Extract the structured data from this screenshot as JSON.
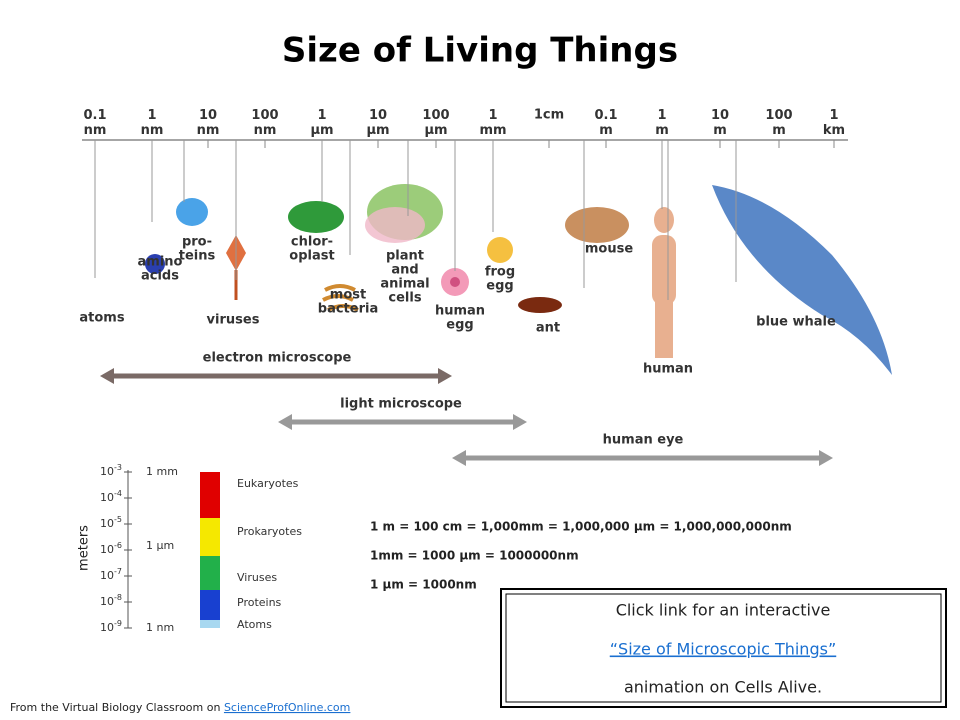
{
  "title": "Size of Living Things",
  "scale": [
    "0.1 nm",
    "1 nm",
    "10 nm",
    "100 nm",
    "1 µm",
    "10 µm",
    "100 µm",
    "1 mm",
    "1cm",
    "0.1 m",
    "1 m",
    "10 m",
    "100 m",
    "1 km"
  ],
  "organisms": [
    {
      "lines": [
        "atoms"
      ]
    },
    {
      "lines": [
        "amino",
        "acids"
      ]
    },
    {
      "lines": [
        "pro-",
        "teins"
      ]
    },
    {
      "lines": [
        "viruses"
      ]
    },
    {
      "lines": [
        "chlor-",
        "oplast"
      ]
    },
    {
      "lines": [
        "most",
        "bacteria"
      ]
    },
    {
      "lines": [
        "plant",
        "and",
        "animal",
        "cells"
      ]
    },
    {
      "lines": [
        "human",
        "egg"
      ]
    },
    {
      "lines": [
        "frog",
        "egg"
      ]
    },
    {
      "lines": [
        "ant"
      ]
    },
    {
      "lines": [
        "mouse"
      ]
    },
    {
      "lines": [
        "human"
      ]
    },
    {
      "lines": [
        "blue whale"
      ]
    }
  ],
  "ranges": [
    "electron microscope",
    "light microscope",
    "human eye"
  ],
  "size_chart": {
    "axis_label": "meters",
    "ticks": [
      {
        "base": "10",
        "exp": "-3"
      },
      {
        "base": "10",
        "exp": "-4"
      },
      {
        "base": "10",
        "exp": "-5"
      },
      {
        "base": "10",
        "exp": "-6"
      },
      {
        "base": "10",
        "exp": "-7"
      },
      {
        "base": "10",
        "exp": "-8"
      },
      {
        "base": "10",
        "exp": "-9"
      }
    ],
    "unit_marks": [
      "1 mm",
      "1 µm",
      "1 nm"
    ],
    "groups": [
      "Eukaryotes",
      "Prokaryotes",
      "Viruses",
      "Proteins",
      "Atoms"
    ]
  },
  "conversions": [
    "1 m = 100 cm = 1,000mm = 1,000,000 µm = 1,000,000,000nm",
    "1mm = 1000 µm = 1000000nm",
    "1 µm = 1000nm"
  ],
  "link_box": {
    "line1": "Click link for an interactive",
    "link": "“Size of Microscopic Things”",
    "line3": "animation on Cells Alive."
  },
  "footer": {
    "text": "From the  Virtual Biology Classroom on ",
    "link": "ScienceProfOnline.com"
  }
}
